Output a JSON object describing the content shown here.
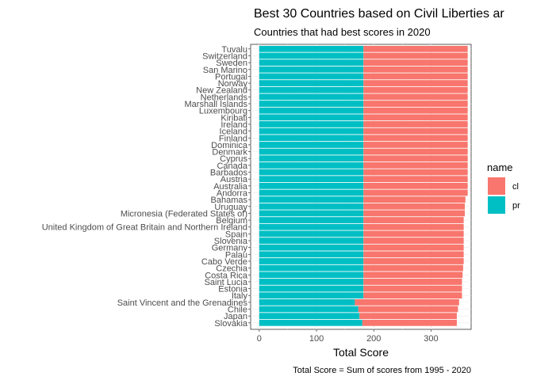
{
  "chart_data": {
    "type": "bar",
    "orientation": "horizontal",
    "stacked": true,
    "title": "Best 30 Countries based on Civil Liberties ar",
    "subtitle": "Countries that had best scores in 2020",
    "xlabel": "Total Score",
    "ylabel": "",
    "caption": "Total Score = Sum of scores from 1995 - 2020",
    "xlim": [
      -15,
      370
    ],
    "xticks": [
      0,
      100,
      200,
      300
    ],
    "grid": true,
    "legend": {
      "title": "name",
      "position": "right"
    },
    "categories": [
      "Tuvalu",
      "Switzerland",
      "Sweden",
      "San Marino",
      "Portugal",
      "Norway",
      "New Zealand",
      "Netherlands",
      "Marshall Islands",
      "Luxembourg",
      "Kiribati",
      "Ireland",
      "Iceland",
      "Finland",
      "Dominica",
      "Denmark",
      "Cyprus",
      "Canada",
      "Barbados",
      "Austria",
      "Australia",
      "Andorra",
      "Bahamas",
      "Uruguay",
      "Micronesia (Federated States of)",
      "Belgium",
      "United Kingdom of Great Britain and Northern Ireland",
      "Spain",
      "Slovenia",
      "Germany",
      "Palau",
      "Cabo Verde",
      "Czechia",
      "Costa Rica",
      "Saint Lucia",
      "Estonia",
      "Italy",
      "Saint Vincent and the Grenadines",
      "Chile",
      "Japan",
      "Slovakia"
    ],
    "series": [
      {
        "name": "pr",
        "color": "#00BFC4",
        "values": [
          182,
          182,
          182,
          182,
          182,
          182,
          182,
          182,
          182,
          182,
          182,
          182,
          182,
          182,
          182,
          182,
          182,
          182,
          182,
          182,
          182,
          182,
          182,
          182,
          182,
          182,
          182,
          182,
          182,
          182,
          182,
          182,
          182,
          182,
          182,
          182,
          182,
          167,
          173,
          175,
          180
        ]
      },
      {
        "name": "cl",
        "color": "#F8766D",
        "values": [
          182,
          182,
          182,
          182,
          182,
          182,
          182,
          182,
          182,
          182,
          182,
          182,
          182,
          182,
          182,
          182,
          182,
          182,
          182,
          182,
          182,
          182,
          178,
          177,
          177,
          175,
          175,
          175,
          175,
          175,
          175,
          175,
          174,
          173,
          172,
          172,
          172,
          182,
          174,
          170,
          165
        ]
      }
    ]
  }
}
